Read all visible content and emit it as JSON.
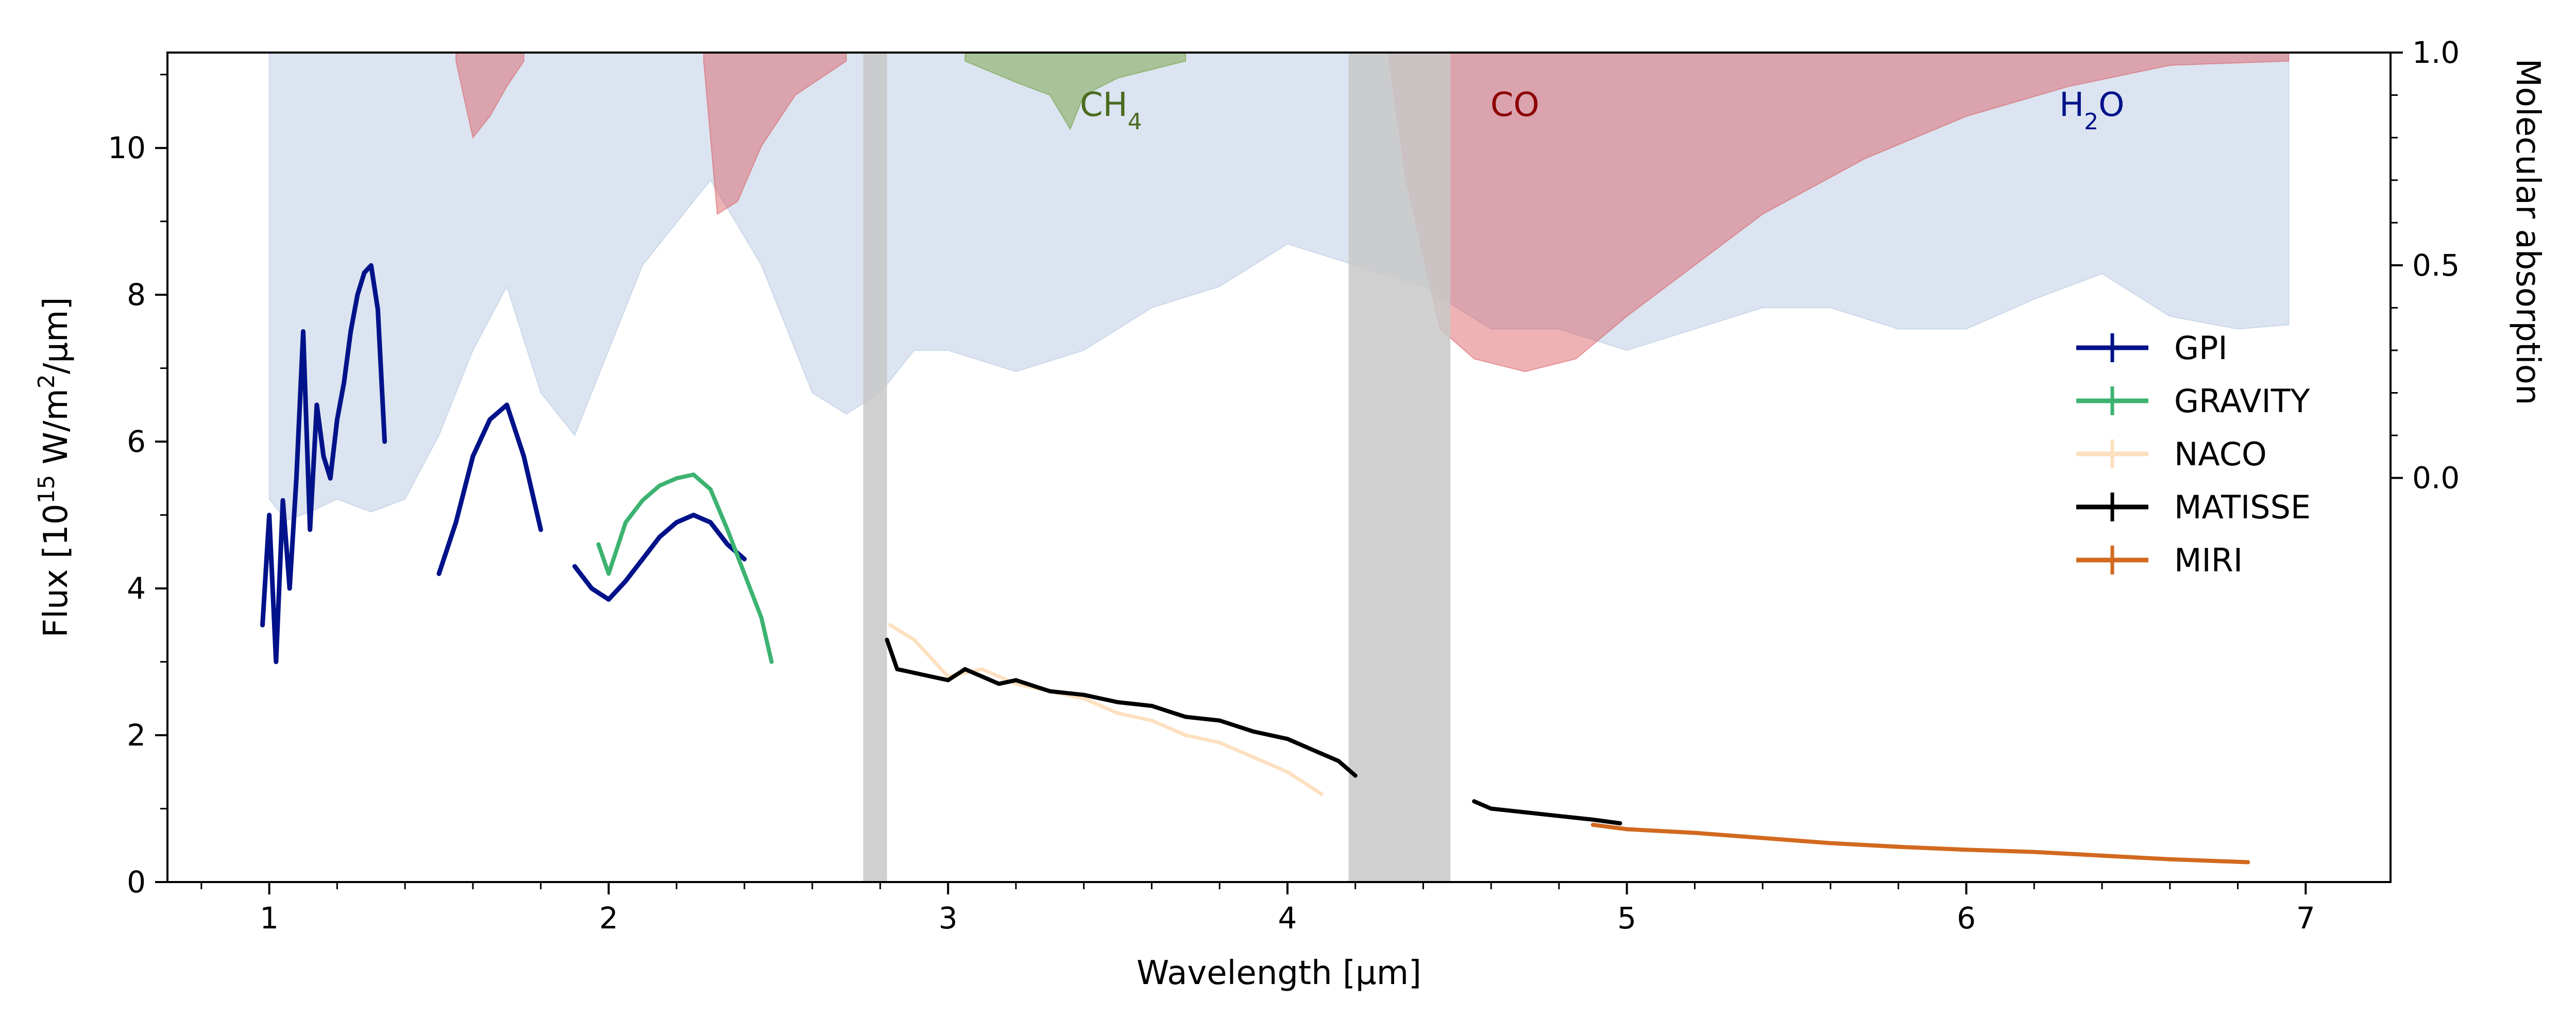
{
  "chart_data": {
    "type": "line",
    "xlabel": "Wavelength [µm]",
    "ylabel": "Flux [10¹⁵ W/m²/µm]",
    "ylabel_parts": {
      "pre": "Flux [10",
      "exp1": "15",
      "mid": " W/m",
      "exp2": "2",
      "post": "/µm]"
    },
    "y2label": "Molecular absorption",
    "xlim": [
      0.7,
      7.25
    ],
    "ylim": [
      0,
      11.3
    ],
    "y2lim": [
      -0.95,
      1.0
    ],
    "x_ticks": [
      "1",
      "2",
      "3",
      "4",
      "5",
      "6",
      "7"
    ],
    "y_ticks": [
      "0",
      "2",
      "4",
      "6",
      "8",
      "10"
    ],
    "y2_ticks": [
      "0.0",
      "0.5",
      "1.0"
    ],
    "grid": false,
    "legend_position": "center-right",
    "molecule_labels": [
      {
        "text": "CH",
        "sub": "4",
        "x": 3.48,
        "color": "#4a6b1f"
      },
      {
        "text": "CO",
        "sub": "",
        "x": 4.67,
        "color": "#8b0000"
      },
      {
        "text": "H",
        "sub": "2",
        "tail": "O",
        "x": 6.37,
        "color": "#00128a"
      }
    ],
    "absorption_bands": [
      {
        "name": "H2O",
        "color": "#b0c4de",
        "x": [
          1.0,
          1.05,
          1.12,
          1.2,
          1.3,
          1.4,
          1.5,
          1.6,
          1.7,
          1.8,
          1.9,
          2.0,
          2.1,
          2.2,
          2.3,
          2.45,
          2.6,
          2.7,
          2.8,
          2.9,
          3.0,
          3.2,
          3.4,
          3.6,
          3.8,
          4.0,
          4.2,
          4.4,
          4.6,
          4.8,
          5.0,
          5.2,
          5.4,
          5.6,
          5.8,
          6.0,
          6.2,
          6.4,
          6.6,
          6.8,
          6.95
        ],
        "y": [
          -0.05,
          -0.1,
          -0.08,
          -0.05,
          -0.08,
          -0.05,
          0.1,
          0.3,
          0.45,
          0.2,
          0.1,
          0.3,
          0.5,
          0.6,
          0.7,
          0.5,
          0.2,
          0.15,
          0.2,
          0.3,
          0.3,
          0.25,
          0.3,
          0.4,
          0.45,
          0.55,
          0.5,
          0.45,
          0.35,
          0.35,
          0.3,
          0.35,
          0.4,
          0.4,
          0.35,
          0.35,
          0.42,
          0.48,
          0.38,
          0.35,
          0.36
        ]
      },
      {
        "name": "CO",
        "color": "#d9545a",
        "x": [
          4.3,
          4.35,
          4.45,
          4.55,
          4.7,
          4.85,
          5.0,
          5.2,
          5.4,
          5.7,
          6.0,
          6.3,
          6.6,
          6.95
        ],
        "y": [
          0.98,
          0.7,
          0.35,
          0.28,
          0.25,
          0.28,
          0.38,
          0.5,
          0.62,
          0.75,
          0.85,
          0.92,
          0.97,
          0.98
        ]
      },
      {
        "name": "CO (1.6 µm)",
        "color": "#d9545a",
        "x": [
          1.55,
          1.6,
          1.65,
          1.7,
          1.75
        ],
        "y": [
          0.98,
          0.8,
          0.85,
          0.92,
          0.98
        ]
      },
      {
        "name": "CO (2.3 µm)",
        "color": "#d9545a",
        "x": [
          2.28,
          2.32,
          2.38,
          2.45,
          2.55,
          2.7
        ],
        "y": [
          0.98,
          0.62,
          0.65,
          0.78,
          0.9,
          0.98
        ]
      },
      {
        "name": "CH4",
        "color": "#6b9a2e",
        "x": [
          3.05,
          3.2,
          3.3,
          3.36,
          3.4,
          3.5,
          3.6,
          3.7
        ],
        "y": [
          0.98,
          0.93,
          0.9,
          0.82,
          0.9,
          0.94,
          0.96,
          0.98
        ]
      }
    ],
    "gaps": [
      {
        "x0": 2.75,
        "x1": 2.82
      },
      {
        "x0": 4.18,
        "x1": 4.48
      }
    ],
    "series": [
      {
        "name": "GPI",
        "color": "#00128a",
        "segments": [
          {
            "x": [
              0.98,
              1.0,
              1.02,
              1.04,
              1.06,
              1.08,
              1.1,
              1.12,
              1.14,
              1.16,
              1.18,
              1.2,
              1.22,
              1.24,
              1.26,
              1.28,
              1.3,
              1.32,
              1.34
            ],
            "y": [
              3.5,
              5.0,
              3.0,
              5.2,
              4.0,
              5.5,
              7.5,
              4.8,
              6.5,
              5.8,
              5.5,
              6.3,
              6.8,
              7.5,
              8.0,
              8.3,
              8.4,
              7.8,
              6.0
            ]
          },
          {
            "x": [
              1.5,
              1.55,
              1.6,
              1.65,
              1.7,
              1.75,
              1.8
            ],
            "y": [
              4.2,
              4.9,
              5.8,
              6.3,
              6.5,
              5.8,
              4.8
            ]
          },
          {
            "x": [
              1.9,
              1.95,
              2.0,
              2.05,
              2.1,
              2.15,
              2.2,
              2.25,
              2.3,
              2.35,
              2.4
            ],
            "y": [
              4.3,
              4.0,
              3.85,
              4.1,
              4.4,
              4.7,
              4.9,
              5.0,
              4.9,
              4.6,
              4.4
            ]
          }
        ]
      },
      {
        "name": "GRAVITY",
        "color": "#3cb371",
        "x": [
          1.97,
          2.0,
          2.05,
          2.1,
          2.15,
          2.2,
          2.25,
          2.3,
          2.35,
          2.4,
          2.45,
          2.48
        ],
        "y": [
          4.6,
          4.2,
          4.9,
          5.2,
          5.4,
          5.5,
          5.55,
          5.35,
          4.8,
          4.2,
          3.6,
          3.0
        ]
      },
      {
        "name": "NACO",
        "color": "#fde0c0",
        "x": [
          2.83,
          2.9,
          3.0,
          3.1,
          3.2,
          3.3,
          3.4,
          3.5,
          3.6,
          3.7,
          3.8,
          3.9,
          4.0,
          4.1
        ],
        "y": [
          3.5,
          3.3,
          2.8,
          2.9,
          2.7,
          2.6,
          2.5,
          2.3,
          2.2,
          2.0,
          1.9,
          1.7,
          1.5,
          1.2
        ]
      },
      {
        "name": "MATISSE",
        "color": "#000000",
        "segments": [
          {
            "x": [
              2.82,
              2.85,
              2.9,
              2.95,
              3.0,
              3.05,
              3.1,
              3.15,
              3.2,
              3.3,
              3.4,
              3.5,
              3.6,
              3.7,
              3.8,
              3.9,
              4.0,
              4.1,
              4.15,
              4.2
            ],
            "y": [
              3.3,
              2.9,
              2.85,
              2.8,
              2.75,
              2.9,
              2.8,
              2.7,
              2.75,
              2.6,
              2.55,
              2.45,
              2.4,
              2.25,
              2.2,
              2.05,
              1.95,
              1.75,
              1.65,
              1.45
            ]
          },
          {
            "x": [
              4.55,
              4.6,
              4.7,
              4.8,
              4.9,
              4.98
            ],
            "y": [
              1.1,
              1.0,
              0.95,
              0.9,
              0.85,
              0.8
            ]
          }
        ]
      },
      {
        "name": "MIRI",
        "color": "#d2691e",
        "x": [
          4.9,
          5.0,
          5.2,
          5.4,
          5.6,
          5.8,
          6.0,
          6.2,
          6.4,
          6.6,
          6.83
        ],
        "y": [
          0.78,
          0.72,
          0.67,
          0.6,
          0.53,
          0.48,
          0.44,
          0.41,
          0.36,
          0.31,
          0.27
        ]
      }
    ]
  }
}
